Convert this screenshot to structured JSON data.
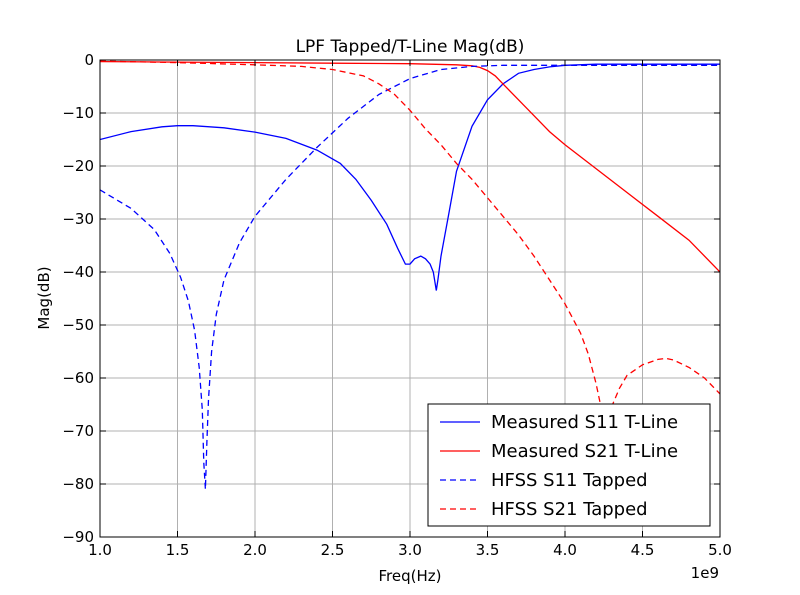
{
  "chart_data": {
    "type": "line",
    "title": "LPF Tapped/T-Line Mag(dB)",
    "xlabel": "Freq(Hz)",
    "ylabel": "Mag(dB)",
    "x_offset_label": "1e9",
    "xlim": [
      1.0,
      5.0
    ],
    "ylim": [
      -90,
      0
    ],
    "x_ticks": [
      "1.0",
      "1.5",
      "2.0",
      "2.5",
      "3.0",
      "3.5",
      "4.0",
      "4.5",
      "5.0"
    ],
    "y_ticks": [
      "0",
      "−10",
      "−20",
      "−30",
      "−40",
      "−50",
      "−60",
      "−70",
      "−80",
      "−90"
    ],
    "grid": true,
    "legend_position": "lower-right",
    "series": [
      {
        "name": "Measured S11 T-Line",
        "color": "#0000ff",
        "dash": "solid",
        "x": [
          1.0,
          1.2,
          1.4,
          1.5,
          1.6,
          1.8,
          2.0,
          2.2,
          2.4,
          2.55,
          2.65,
          2.75,
          2.85,
          2.92,
          2.97,
          3.0,
          3.03,
          3.07,
          3.1,
          3.13,
          3.15,
          3.17,
          3.18,
          3.2,
          3.25,
          3.3,
          3.4,
          3.5,
          3.6,
          3.7,
          3.8,
          3.9,
          4.0,
          4.2,
          4.5,
          5.0
        ],
        "y": [
          -15,
          -13.5,
          -12.6,
          -12.4,
          -12.4,
          -12.8,
          -13.6,
          -14.8,
          -17.0,
          -19.5,
          -22.5,
          -26.5,
          -31.0,
          -35.5,
          -38.5,
          -38.5,
          -37.5,
          -37.0,
          -37.5,
          -38.5,
          -40.0,
          -43.5,
          -41.5,
          -37.0,
          -29.0,
          -21.0,
          -12.5,
          -7.5,
          -4.5,
          -2.5,
          -1.8,
          -1.3,
          -1.0,
          -0.8,
          -0.8,
          -0.8
        ]
      },
      {
        "name": "Measured S21 T-Line",
        "color": "#ff0000",
        "dash": "solid",
        "x": [
          1.0,
          1.5,
          2.0,
          2.5,
          3.0,
          3.3,
          3.4,
          3.45,
          3.5,
          3.55,
          3.6,
          3.7,
          3.8,
          3.9,
          4.0,
          4.2,
          4.4,
          4.6,
          4.8,
          5.0
        ],
        "y": [
          -0.3,
          -0.4,
          -0.5,
          -0.6,
          -0.7,
          -0.9,
          -1.1,
          -1.4,
          -2.0,
          -3.0,
          -4.5,
          -7.5,
          -10.5,
          -13.5,
          -16.0,
          -20.5,
          -25.0,
          -29.5,
          -34.0,
          -40.0
        ]
      },
      {
        "name": "HFSS S11 Tapped",
        "color": "#0000ff",
        "dash": "dashed",
        "x": [
          1.0,
          1.2,
          1.35,
          1.45,
          1.52,
          1.57,
          1.61,
          1.64,
          1.66,
          1.67,
          1.68,
          1.69,
          1.7,
          1.72,
          1.75,
          1.8,
          1.9,
          2.0,
          2.2,
          2.4,
          2.6,
          2.8,
          3.0,
          3.2,
          3.4,
          3.6,
          3.8,
          4.0,
          4.5,
          5.0
        ],
        "y": [
          -24.5,
          -28.0,
          -32.0,
          -36.5,
          -41.0,
          -45.5,
          -51.0,
          -58.0,
          -66.0,
          -76.0,
          -81.0,
          -72.0,
          -64.0,
          -55.0,
          -48.0,
          -41.5,
          -34.5,
          -29.5,
          -22.5,
          -16.5,
          -11.0,
          -6.5,
          -3.5,
          -1.8,
          -1.2,
          -1.0,
          -1.0,
          -1.0,
          -1.0,
          -1.0
        ]
      },
      {
        "name": "HFSS S21 Tapped",
        "color": "#ff0000",
        "dash": "dashed",
        "x": [
          1.0,
          1.5,
          2.0,
          2.3,
          2.5,
          2.7,
          2.8,
          2.9,
          3.0,
          3.1,
          3.2,
          3.3,
          3.4,
          3.5,
          3.6,
          3.7,
          3.8,
          3.9,
          4.0,
          4.1,
          4.15,
          4.2,
          4.25,
          4.3,
          4.35,
          4.4,
          4.5,
          4.6,
          4.65,
          4.7,
          4.8,
          4.9,
          5.0
        ],
        "y": [
          -0.2,
          -0.5,
          -0.9,
          -1.2,
          -1.8,
          -3.0,
          -4.5,
          -6.5,
          -9.5,
          -13.0,
          -16.0,
          -19.5,
          -22.5,
          -26.0,
          -29.5,
          -33.0,
          -37.0,
          -41.5,
          -46.0,
          -51.5,
          -55.5,
          -61.0,
          -68.0,
          -65.5,
          -62.0,
          -59.5,
          -57.5,
          -56.5,
          -56.3,
          -56.6,
          -58.0,
          -60.0,
          -63.0
        ]
      }
    ]
  }
}
